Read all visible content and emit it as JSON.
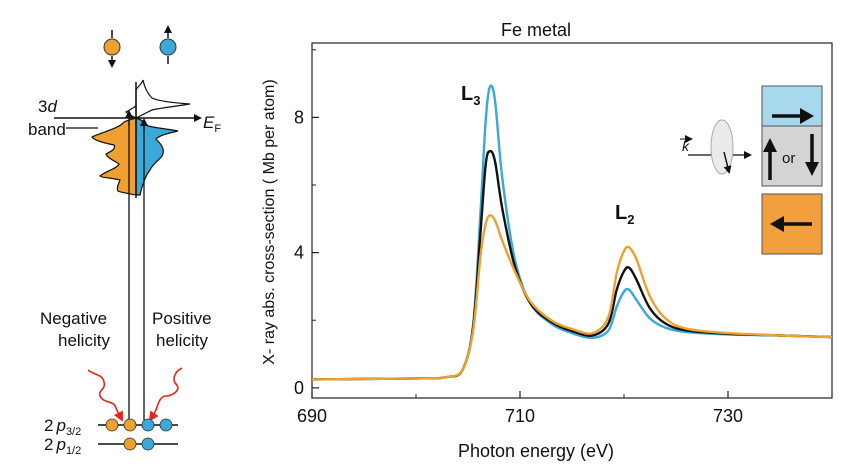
{
  "colors": {
    "orange": "#f0a030",
    "blue": "#3aa8d8",
    "black": "#111111",
    "panel_blue": "#a8d8ee",
    "panel_gray": "#d4d4d4",
    "panel_orange": "#f2a03e",
    "photon_red": "#e8241c"
  },
  "schematic": {
    "band_label_1": "3",
    "band_label_1_italic": "d",
    "band_label_2": "band",
    "fermi_label": "E",
    "fermi_sub": "F",
    "negative_label_1": "Negative",
    "negative_label_2": "helicity",
    "positive_label_1": "Positive",
    "positive_label_2": "helicity",
    "level_3_2": "2",
    "level_3_2_p": "p",
    "level_3_2_sub": "3/2",
    "level_1_2": "2",
    "level_1_2_p": "p",
    "level_1_2_sub": "1/2"
  },
  "legend_panels": {
    "k_label": "k",
    "or_label": "or",
    "icons": [
      "arrow-right-icon",
      "arrow-up-icon",
      "arrow-down-icon",
      "arrow-left-icon",
      "circular-polarization-icon"
    ]
  },
  "chart_data": {
    "type": "line",
    "title": "Fe metal",
    "xlabel": "Photon energy (eV)",
    "ylabel": "X- ray  abs. cross-section ( Mb per atom)",
    "xlim": [
      690,
      740
    ],
    "ylim": [
      -0.3,
      10.2
    ],
    "xticks": [
      690,
      710,
      730
    ],
    "yticks": [
      0,
      4,
      8
    ],
    "grid": false,
    "annotations": [
      {
        "text": "L",
        "sub": "3",
        "x": 706.5,
        "y": 9.1
      },
      {
        "text": "L",
        "sub": "2",
        "x": 720.0,
        "y": 4.8
      }
    ],
    "series": [
      {
        "color": "#3aa8d8",
        "x": [
          690,
          700,
          703,
          704.5,
          705.5,
          706.2,
          706.7,
          707.1,
          707.6,
          708.3,
          709.5,
          711,
          713,
          715,
          717,
          718.5,
          719.3,
          720,
          720.5,
          721.2,
          722.5,
          724,
          726,
          730,
          735,
          740
        ],
        "y": [
          0.25,
          0.28,
          0.32,
          0.55,
          1.9,
          5.2,
          7.9,
          8.9,
          8.5,
          6.2,
          3.8,
          2.5,
          1.9,
          1.62,
          1.48,
          1.7,
          2.4,
          2.85,
          2.9,
          2.6,
          2.05,
          1.78,
          1.65,
          1.58,
          1.55,
          1.5
        ]
      },
      {
        "color": "#111111",
        "x": [
          690,
          700,
          703,
          704.5,
          705.5,
          706.2,
          706.7,
          707.1,
          707.6,
          708.3,
          709.5,
          711,
          713,
          715,
          717,
          718.5,
          719.3,
          720,
          720.5,
          721.2,
          722.5,
          724,
          726,
          730,
          735,
          740
        ],
        "y": [
          0.25,
          0.28,
          0.32,
          0.55,
          1.8,
          4.6,
          6.6,
          7.0,
          6.7,
          5.3,
          3.6,
          2.5,
          1.95,
          1.68,
          1.55,
          1.9,
          2.9,
          3.45,
          3.55,
          3.2,
          2.35,
          1.9,
          1.7,
          1.6,
          1.55,
          1.5
        ]
      },
      {
        "color": "#f0a030",
        "x": [
          690,
          700,
          703,
          704.5,
          705.5,
          706.2,
          706.7,
          707.1,
          707.6,
          708.3,
          709.5,
          711,
          713,
          715,
          717,
          718.5,
          719.3,
          720,
          720.5,
          721.2,
          722.5,
          724,
          726,
          730,
          735,
          740
        ],
        "y": [
          0.25,
          0.28,
          0.32,
          0.55,
          1.7,
          3.9,
          4.85,
          5.1,
          4.95,
          4.35,
          3.45,
          2.55,
          2.0,
          1.74,
          1.62,
          2.1,
          3.4,
          4.05,
          4.15,
          3.8,
          2.7,
          2.05,
          1.75,
          1.62,
          1.55,
          1.5
        ]
      }
    ]
  }
}
